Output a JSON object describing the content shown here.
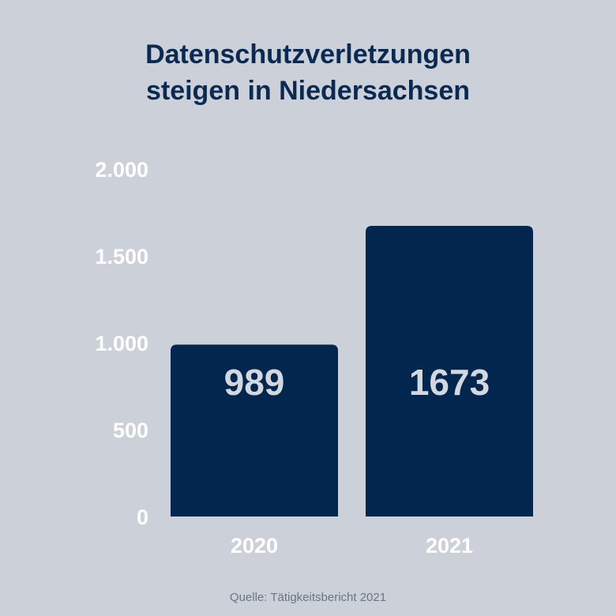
{
  "title_line1": "Datenschutzverletzungen",
  "title_line2": "steigen in Niedersachsen",
  "source": "Quelle: Tätigkeitsbericht 2021",
  "colors": {
    "background": "#ccd0d9",
    "bar": "#02264e",
    "title": "#0b2a52",
    "axis_text": "#ffffff",
    "value_text": "#d3d8e0"
  },
  "chart_data": {
    "type": "bar",
    "title": "Datenschutzverletzungen steigen in Niedersachsen",
    "xlabel": "",
    "ylabel": "",
    "categories": [
      "2020",
      "2021"
    ],
    "values": [
      989,
      1673
    ],
    "value_labels": [
      "989",
      "1673"
    ],
    "ylim": [
      0,
      2000
    ],
    "yticks": [
      0,
      500,
      1000,
      1500,
      2000
    ],
    "ytick_labels": [
      "0",
      "500",
      "1.000",
      "1.500",
      "2.000"
    ],
    "grid": false,
    "legend": "none"
  }
}
